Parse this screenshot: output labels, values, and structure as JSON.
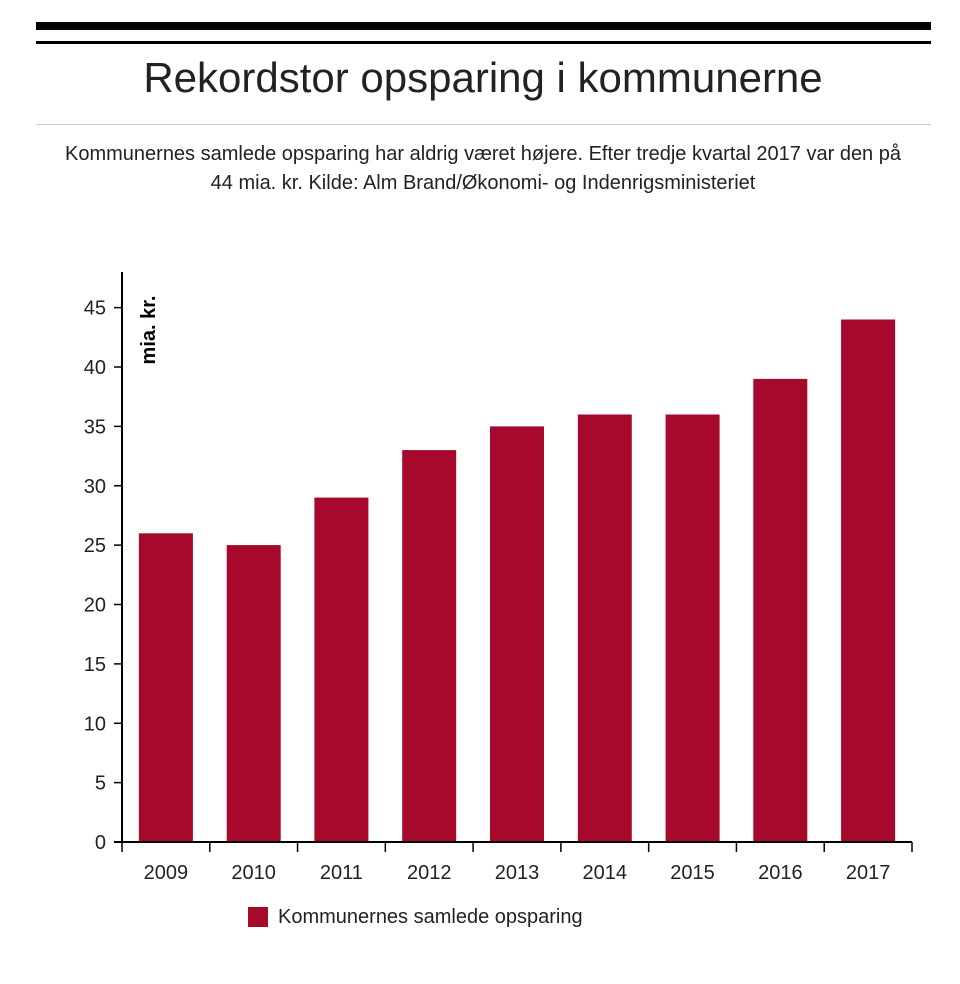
{
  "header": {
    "title": "Rekordstor opsparing i kommunerne",
    "subtitle": "Kommunernes samlede opsparing har aldrig været højere. Efter tredje kvartal 2017 var den på 44 mia. kr. Kilde: Alm Brand/Økonomi- og Indenrigsministeriet"
  },
  "colors": {
    "bar": "#a6092c",
    "axis": "#000000",
    "text": "#222222"
  },
  "chart_data": {
    "type": "bar",
    "title": "Rekordstor opsparing i kommunerne",
    "subtitle": "Kommunernes samlede opsparing har aldrig været højere. Efter tredje kvartal 2017 var den på 44 mia. kr. Kilde: Alm Brand/Økonomi- og Indenrigsministeriet",
    "xlabel": "",
    "ylabel": "mia. kr.",
    "categories": [
      "2009",
      "2010",
      "2011",
      "2012",
      "2013",
      "2014",
      "2015",
      "2016",
      "2017"
    ],
    "series": [
      {
        "name": "Kommunernes samlede opsparing",
        "values": [
          26,
          25,
          29,
          33,
          35,
          36,
          36,
          39,
          44
        ]
      }
    ],
    "ylim": [
      0,
      48
    ],
    "yticks": [
      0,
      5,
      10,
      15,
      20,
      25,
      30,
      35,
      40,
      45
    ],
    "grid": false,
    "legend": "bottom"
  }
}
